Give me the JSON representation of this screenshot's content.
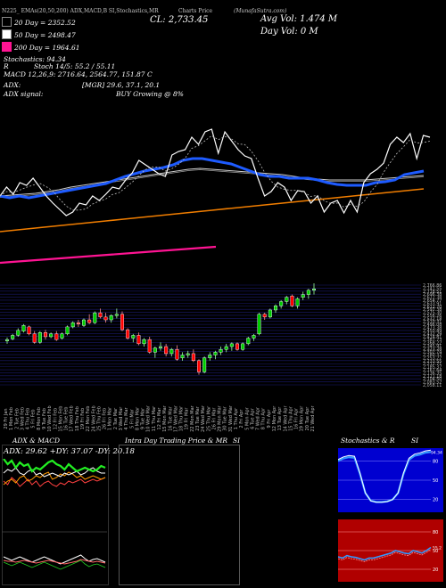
{
  "colors": {
    "background": "#000000",
    "ema20": "#d9d9d9",
    "ema50": "#e8e8e8",
    "ema200": "#ff1493",
    "sma20": "#1e5bff",
    "sma50": "#cccccc",
    "sma200": "#f07d00",
    "up": "#00cc00",
    "down": "#ff0000",
    "grid": "#1a1a6e"
  },
  "header": {
    "code_text": "N225_ EMAs(20,50,200) ADX,MACD,B SI,Stochastics,MR",
    "chart_text": "Charts Price",
    "source_text": "(MunafaSutra.com)"
  },
  "legend": {
    "ema20": "20 Day = 2352.52",
    "ema50": "50 Day = 2498.47",
    "ema200": "200 Day = 1964.61",
    "stochastics": "Stochastics: 94.34",
    "r": "R",
    "macd_line": "MACD 12,26,9: 2716.64, 2564.77, 151.87 C",
    "stoch_line": "Stoch 14/5: 55.2 / 55.11"
  },
  "stats": {
    "close": "CL: 2,733.45",
    "avg_vol": "Avg Vol: 1.474   M",
    "day_vol": "Day Vol: 0   M"
  },
  "adx_info": {
    "label": "ADX:",
    "value": "[MGR] 29.6, 37.1, 20.1",
    "signal_label": "ADX  signal:",
    "signal_value": "BUY Growing @ 8%"
  },
  "panels": {
    "adx_title": "ADX  & MACD",
    "adx_values": "ADX: 29.62  +DY: 37.07  -DY: 20.18",
    "intra_title": "Intra  Day Trading Price  & MR",
    "intra_si": "SI",
    "stoch_title": "Stochastics & R",
    "stoch_si": "SI",
    "stoch_levels": [
      "80",
      "50",
      "20"
    ],
    "rsi_levels": [
      "80",
      "50",
      "20"
    ],
    "stoch_value": "94.34",
    "rsi_value": "55.2"
  },
  "chart_data": {
    "type": "candlestick",
    "y_ticks": [
      "2,766.86",
      "2,741.55",
      "2,718.51",
      "2,696.38",
      "2,672.38",
      "2,654.77",
      "2,633.91",
      "2,612.70",
      "2,597.38",
      "2,575.30",
      "2,556.26",
      "2,532.18",
      "2,510.31",
      "2,496.08",
      "2,473.38",
      "2,450.49",
      "2,432.29",
      "2,414.81",
      "2,387.73",
      "2,368.22",
      "2,345.91",
      "2,323.28",
      "2,302.74",
      "2,280.37",
      "2,253.27",
      "2,233.55",
      "2,212.71",
      "2,185.37",
      "2,167.64",
      "2,136.35",
      "2,121.18",
      "2,104.50",
      "2,083.52",
      "2,058.11"
    ],
    "dates": [
      "29 Fri Jan",
      "1 Mon Feb",
      "2 Tue Feb",
      "3 Wed Feb",
      "4 Thu Feb",
      "5 Fri Feb",
      "8 Mon Feb",
      "9 Tue Feb",
      "10 Wed Feb",
      "12 Fri Feb",
      "15 Mon Feb",
      "16 Tue Feb",
      "17 Wed Feb",
      "18 Thu Feb",
      "19 Fri Feb",
      "22 Mon Feb",
      "24 Wed Feb",
      "25 Thu Feb",
      "26 Fri Feb",
      "1 Mon Mar",
      "2 Tue Mar",
      "3 Wed Mar",
      "4 Thu Mar",
      "5 Fri Mar",
      "8 Mon Mar",
      "9 Tue Mar",
      "10 Wed Mar",
      "11 Thu Mar",
      "12 Fri Mar",
      "15 Mon Mar",
      "16 Tue Mar",
      "17 Wed Mar",
      "18 Thu Mar",
      "19 Fri Mar",
      "22 Mon Mar",
      "23 Tue Mar",
      "24 Wed Mar",
      "25 Thu Mar",
      "26 Fri Mar",
      "29 Mon Mar",
      "30 Tue Mar",
      "31 Wed Mar",
      "1 Thu Apr",
      "2 Fri Apr",
      "5 Mon Apr",
      "6 Tue Apr",
      "7 Wed Apr",
      "8 Thu Apr",
      "9 Fri Apr",
      "12 Mon Apr",
      "13 Tue Apr",
      "14 Wed Apr",
      "15 Thu Apr",
      "16 Fri Apr",
      "19 Mon Apr",
      "20 Tue Apr",
      "21 Wed Apr"
    ],
    "candles": [
      {
        "o": 2370,
        "h": 2395,
        "l": 2350,
        "c": 2380
      },
      {
        "o": 2385,
        "h": 2420,
        "l": 2375,
        "c": 2410
      },
      {
        "o": 2410,
        "h": 2460,
        "l": 2400,
        "c": 2445
      },
      {
        "o": 2440,
        "h": 2490,
        "l": 2430,
        "c": 2480
      },
      {
        "o": 2470,
        "h": 2480,
        "l": 2410,
        "c": 2420
      },
      {
        "o": 2420,
        "h": 2440,
        "l": 2350,
        "c": 2360
      },
      {
        "o": 2360,
        "h": 2440,
        "l": 2350,
        "c": 2430
      },
      {
        "o": 2430,
        "h": 2450,
        "l": 2380,
        "c": 2400
      },
      {
        "o": 2400,
        "h": 2430,
        "l": 2390,
        "c": 2420
      },
      {
        "o": 2420,
        "h": 2440,
        "l": 2370,
        "c": 2380
      },
      {
        "o": 2390,
        "h": 2430,
        "l": 2380,
        "c": 2420
      },
      {
        "o": 2420,
        "h": 2480,
        "l": 2410,
        "c": 2470
      },
      {
        "o": 2470,
        "h": 2510,
        "l": 2460,
        "c": 2500
      },
      {
        "o": 2500,
        "h": 2520,
        "l": 2470,
        "c": 2490
      },
      {
        "o": 2480,
        "h": 2530,
        "l": 2470,
        "c": 2520
      },
      {
        "o": 2520,
        "h": 2560,
        "l": 2490,
        "c": 2500
      },
      {
        "o": 2500,
        "h": 2580,
        "l": 2490,
        "c": 2570
      },
      {
        "o": 2570,
        "h": 2600,
        "l": 2530,
        "c": 2540
      },
      {
        "o": 2540,
        "h": 2570,
        "l": 2500,
        "c": 2520
      },
      {
        "o": 2520,
        "h": 2560,
        "l": 2500,
        "c": 2550
      },
      {
        "o": 2550,
        "h": 2600,
        "l": 2530,
        "c": 2560
      },
      {
        "o": 2560,
        "h": 2580,
        "l": 2440,
        "c": 2450
      },
      {
        "o": 2450,
        "h": 2460,
        "l": 2380,
        "c": 2390
      },
      {
        "o": 2390,
        "h": 2420,
        "l": 2360,
        "c": 2410
      },
      {
        "o": 2410,
        "h": 2430,
        "l": 2340,
        "c": 2350
      },
      {
        "o": 2350,
        "h": 2390,
        "l": 2330,
        "c": 2380
      },
      {
        "o": 2380,
        "h": 2400,
        "l": 2280,
        "c": 2290
      },
      {
        "o": 2290,
        "h": 2330,
        "l": 2250,
        "c": 2320
      },
      {
        "o": 2320,
        "h": 2360,
        "l": 2300,
        "c": 2330
      },
      {
        "o": 2330,
        "h": 2350,
        "l": 2260,
        "c": 2280
      },
      {
        "o": 2280,
        "h": 2320,
        "l": 2260,
        "c": 2310
      },
      {
        "o": 2310,
        "h": 2340,
        "l": 2230,
        "c": 2240
      },
      {
        "o": 2250,
        "h": 2290,
        "l": 2230,
        "c": 2270
      },
      {
        "o": 2270,
        "h": 2300,
        "l": 2250,
        "c": 2280
      },
      {
        "o": 2280,
        "h": 2310,
        "l": 2220,
        "c": 2230
      },
      {
        "o": 2230,
        "h": 2240,
        "l": 2130,
        "c": 2150
      },
      {
        "o": 2150,
        "h": 2260,
        "l": 2140,
        "c": 2250
      },
      {
        "o": 2250,
        "h": 2290,
        "l": 2230,
        "c": 2270
      },
      {
        "o": 2270,
        "h": 2300,
        "l": 2240,
        "c": 2290
      },
      {
        "o": 2290,
        "h": 2330,
        "l": 2270,
        "c": 2310
      },
      {
        "o": 2310,
        "h": 2350,
        "l": 2290,
        "c": 2330
      },
      {
        "o": 2330,
        "h": 2360,
        "l": 2300,
        "c": 2350
      },
      {
        "o": 2350,
        "h": 2360,
        "l": 2300,
        "c": 2310
      },
      {
        "o": 2310,
        "h": 2360,
        "l": 2300,
        "c": 2350
      },
      {
        "o": 2350,
        "h": 2400,
        "l": 2340,
        "c": 2390
      },
      {
        "o": 2390,
        "h": 2420,
        "l": 2370,
        "c": 2410
      },
      {
        "o": 2420,
        "h": 2570,
        "l": 2410,
        "c": 2560
      },
      {
        "o": 2560,
        "h": 2570,
        "l": 2520,
        "c": 2540
      },
      {
        "o": 2540,
        "h": 2600,
        "l": 2530,
        "c": 2590
      },
      {
        "o": 2590,
        "h": 2630,
        "l": 2570,
        "c": 2620
      },
      {
        "o": 2620,
        "h": 2660,
        "l": 2600,
        "c": 2650
      },
      {
        "o": 2650,
        "h": 2690,
        "l": 2630,
        "c": 2680
      },
      {
        "o": 2690,
        "h": 2700,
        "l": 2610,
        "c": 2620
      },
      {
        "o": 2620,
        "h": 2680,
        "l": 2600,
        "c": 2670
      },
      {
        "o": 2680,
        "h": 2720,
        "l": 2660,
        "c": 2700
      },
      {
        "o": 2700,
        "h": 2740,
        "l": 2670,
        "c": 2730
      },
      {
        "o": 2730,
        "h": 2780,
        "l": 2700,
        "c": 2740
      }
    ],
    "overlay": {
      "price": [
        2760,
        2770,
        2762,
        2775,
        2772,
        2780,
        2770,
        2760,
        2752,
        2745,
        2738,
        2742,
        2752,
        2750,
        2760,
        2755,
        2762,
        2770,
        2768,
        2778,
        2786,
        2800,
        2795,
        2790,
        2785,
        2782,
        2806,
        2810,
        2812,
        2826,
        2818,
        2832,
        2835,
        2808,
        2832,
        2822,
        2812,
        2805,
        2802,
        2780,
        2760,
        2765,
        2775,
        2770,
        2755,
        2766,
        2765,
        2752,
        2760,
        2742,
        2752,
        2755,
        2741,
        2755,
        2742,
        2775,
        2785,
        2790,
        2797,
        2818,
        2826,
        2820,
        2830,
        2802,
        2828,
        2826
      ],
      "sma20": [
        2760,
        2758,
        2760,
        2758,
        2760,
        2762,
        2764,
        2766,
        2768,
        2770,
        2772,
        2774,
        2778,
        2782,
        2785,
        2788,
        2790,
        2792,
        2795,
        2800,
        2802,
        2802,
        2800,
        2798,
        2796,
        2792,
        2788,
        2784,
        2782,
        2782,
        2780,
        2780,
        2780,
        2778,
        2775,
        2773,
        2772,
        2772,
        2772,
        2775,
        2776,
        2778,
        2784,
        2786,
        2788
      ],
      "sma50": [
        2760,
        2761,
        2762,
        2763,
        2765,
        2767,
        2770,
        2772,
        2774,
        2776,
        2778,
        2780,
        2782,
        2784,
        2786,
        2788,
        2790,
        2791,
        2790,
        2789,
        2788,
        2787,
        2786,
        2785,
        2784,
        2782,
        2780,
        2779,
        2778,
        2778,
        2778,
        2778,
        2779,
        2780,
        2781,
        2782,
        2783
      ],
      "sma200": [
        2720,
        2722,
        2724,
        2726,
        2728,
        2730,
        2732,
        2734,
        2736,
        2738,
        2740,
        2742,
        2744,
        2746,
        2748,
        2750,
        2752,
        2754,
        2756,
        2758,
        2760,
        2762,
        2764,
        2766,
        2768
      ],
      "ema200": [
        2685,
        2688,
        2691,
        2694,
        2697,
        2700,
        2703
      ]
    },
    "indicators": {
      "stochastics": [
        80,
        84,
        86,
        85,
        60,
        30,
        18,
        16,
        16,
        17,
        20,
        30,
        60,
        82,
        88,
        90,
        93,
        94
      ],
      "rsi": [
        40,
        38,
        42,
        40,
        39,
        37,
        35,
        38,
        38,
        40,
        42,
        44,
        46,
        50,
        48,
        46,
        45,
        50,
        48,
        46,
        50,
        55
      ]
    }
  }
}
